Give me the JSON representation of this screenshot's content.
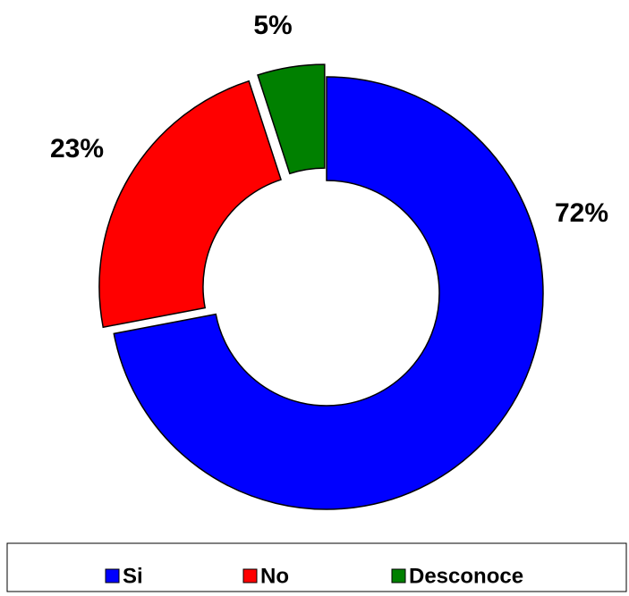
{
  "chart_data": {
    "type": "donut",
    "categories": [
      "Si",
      "No",
      "Desconoce"
    ],
    "values": [
      72,
      23,
      5
    ],
    "value_labels": [
      "72%",
      "23%",
      "5%"
    ],
    "colors": [
      "#0000ff",
      "#ff0000",
      "#008000"
    ],
    "legend": "bottom"
  }
}
